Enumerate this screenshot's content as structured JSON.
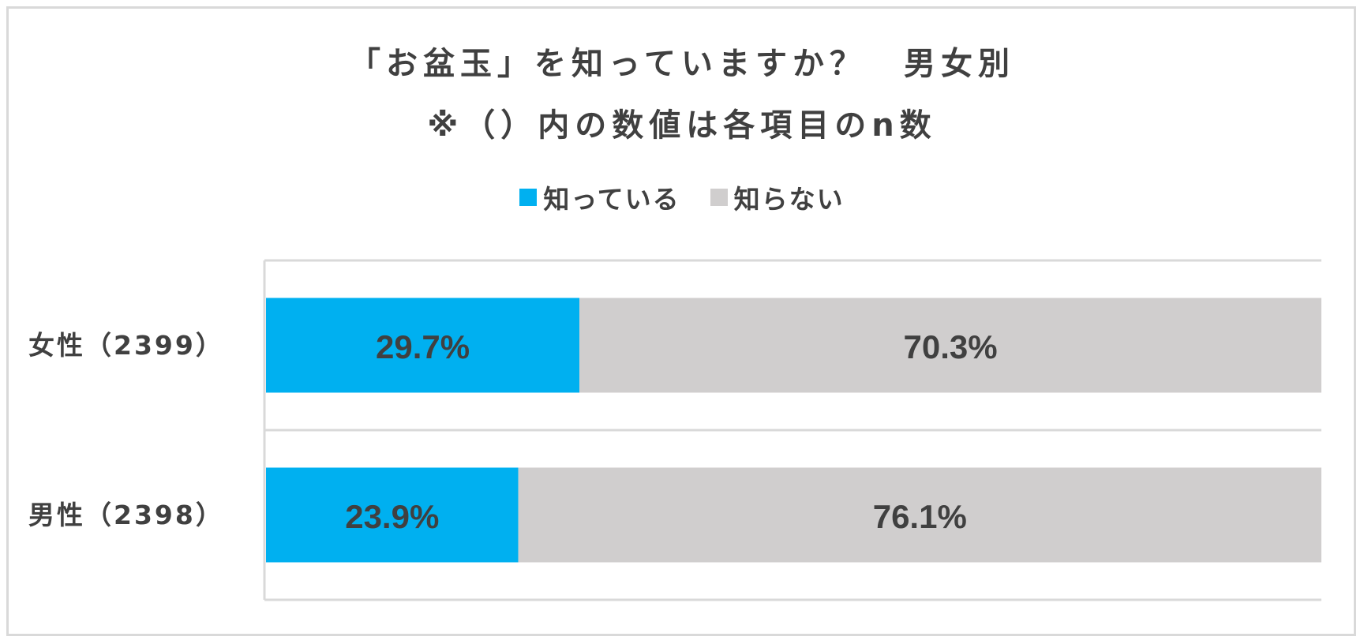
{
  "chart_data": {
    "type": "bar",
    "orientation": "horizontal",
    "stacked": true,
    "title": "「お盆玉」を知っていますか？　男女別",
    "subtitle": "※（）内の数値は各項目のn数",
    "categories": [
      "女性（2399）",
      "男性（2398）"
    ],
    "series": [
      {
        "name": "知っている",
        "color": "#00b0f0",
        "values": [
          29.7,
          23.9
        ],
        "labels": [
          "29.7%",
          "23.9%"
        ]
      },
      {
        "name": "知らない",
        "color": "#d0cece",
        "values": [
          70.3,
          76.1
        ],
        "labels": [
          "70.3%",
          "76.1%"
        ]
      }
    ],
    "xlim": [
      0,
      100
    ],
    "unit": "%",
    "legend_position": "top",
    "grid": false
  }
}
